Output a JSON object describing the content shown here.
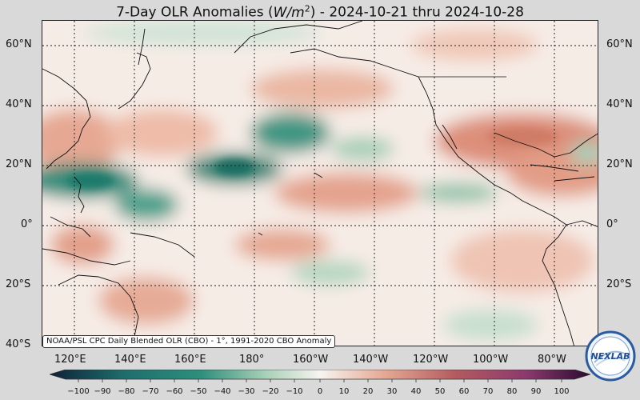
{
  "title": {
    "prefix": "7-Day OLR Anomalies (",
    "unit_base": "W/m",
    "unit_exp": "2",
    "suffix": ") - 2024-10-21 thru 2024-10-28"
  },
  "map": {
    "lat_labels": [
      "60°N",
      "40°N",
      "20°N",
      "0°",
      "20°S",
      "40°S"
    ],
    "lon_labels": [
      "120°E",
      "140°E",
      "160°E",
      "180°",
      "160°W",
      "140°W",
      "120°W",
      "100°W",
      "80°W"
    ],
    "credit": "NOAA/PSL CPC Daily Blended OLR (CBO) - 1°, 1991-2020 CBO Anomaly",
    "colors": {
      "negative": "#1f7a6a",
      "positive": "#c0604a",
      "neutral": "#f8f2ee",
      "land_line": "#111111"
    }
  },
  "colorbar": {
    "ticks": [
      "−100",
      "−90",
      "−80",
      "−70",
      "−60",
      "−50",
      "−40",
      "−30",
      "−20",
      "−10",
      "0",
      "10",
      "20",
      "30",
      "40",
      "50",
      "60",
      "70",
      "80",
      "90",
      "100"
    ],
    "stops": [
      "#0d2236",
      "#16455a",
      "#1f6e6e",
      "#2e8f7c",
      "#6db49a",
      "#a9d0b8",
      "#d6e8dc",
      "#f7f4f0",
      "#f2d5c8",
      "#e4a894",
      "#d07a68",
      "#b35b60",
      "#8c3a6e",
      "#5a1c58",
      "#2a0a30"
    ]
  },
  "logo": {
    "text": "NEXLAB"
  }
}
